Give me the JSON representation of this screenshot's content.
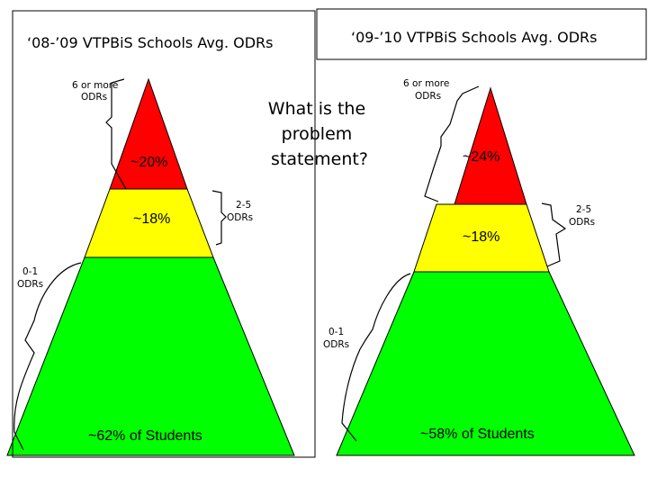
{
  "colors": {
    "red": "#ff0000",
    "yellow": "#ffff00",
    "green": "#00ff00"
  },
  "left": {
    "title": "‘08-’09  VTPBiS Schools Avg. ODRs",
    "top_tier_label_line1": "6 or more",
    "top_tier_label_line2": "ODRs",
    "top_pct": "~20%",
    "mid_pct": "~18%",
    "mid_tier_label_line1": "2-5",
    "mid_tier_label_line2": "ODRs",
    "bottom_tier_label_line1": "0-1",
    "bottom_tier_label_line2": "ODRs",
    "bottom_pct": "~62% of Students",
    "tier_shares_percent": [
      20,
      18,
      62
    ]
  },
  "question": {
    "line1": "What is the",
    "line2": "problem",
    "line3": "statement?"
  },
  "right": {
    "title": "‘09-’10 VTPBiS Schools Avg. ODRs",
    "top_tier_label_line1": "6 or more",
    "top_tier_label_line2": "ODRs",
    "top_pct": "~24%",
    "mid_pct": "~18%",
    "mid_tier_label_line1": "2-5",
    "mid_tier_label_line2": "ODRs",
    "bottom_tier_label_line1": "0-1",
    "bottom_tier_label_line2": "ODRs",
    "bottom_pct": "~58% of Students",
    "tier_shares_percent": [
      24,
      18,
      58
    ]
  }
}
